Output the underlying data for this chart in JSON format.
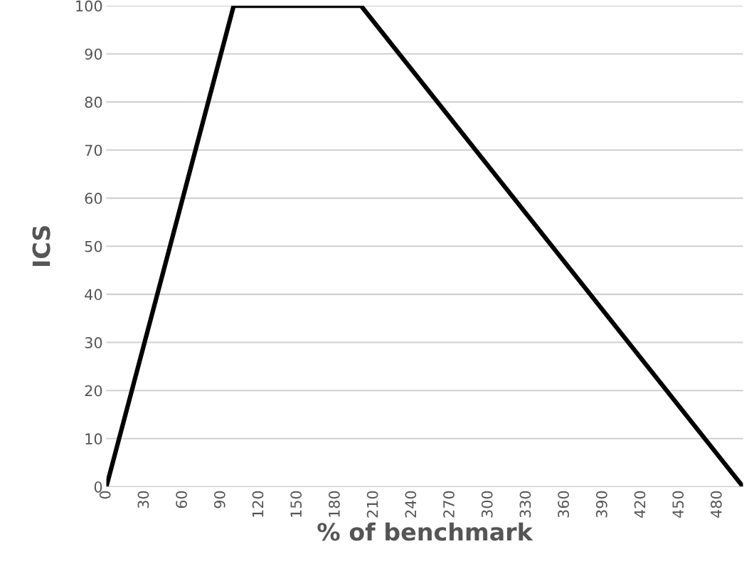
{
  "chart_data": {
    "type": "line",
    "xlabel": "% of benchmark",
    "ylabel": "ICS",
    "x": [
      0,
      100,
      200,
      500
    ],
    "series": [
      {
        "color": "#000000",
        "values": [
          0,
          100,
          100,
          0
        ]
      }
    ],
    "xlim": [
      0,
      500
    ],
    "ylim": [
      0,
      100
    ],
    "xticks": [
      0,
      30,
      60,
      90,
      120,
      150,
      180,
      210,
      240,
      270,
      300,
      330,
      360,
      390,
      420,
      450,
      480
    ],
    "yticks": [
      0,
      10,
      20,
      30,
      40,
      50,
      60,
      70,
      80,
      90,
      100
    ],
    "grid": "y",
    "marker": "none",
    "line_style": "solid"
  }
}
